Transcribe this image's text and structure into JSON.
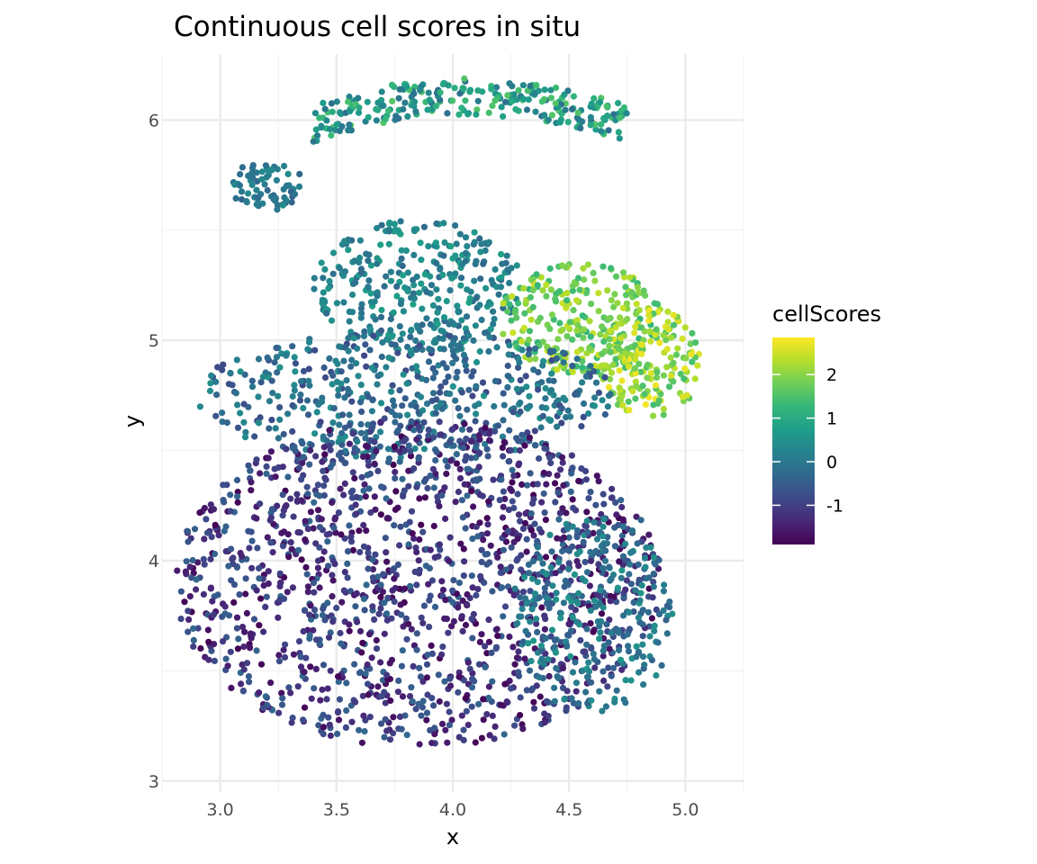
{
  "chart_data": {
    "type": "scatter",
    "title": "Continuous cell scores in situ",
    "xlabel": "x",
    "ylabel": "y",
    "xlim": [
      2.75,
      5.25
    ],
    "ylim": [
      2.95,
      6.3
    ],
    "x_ticks": [
      3.0,
      3.5,
      4.0,
      4.5,
      5.0
    ],
    "x_tick_labels": [
      "3.0",
      "3.5",
      "4.0",
      "4.5",
      "5.0"
    ],
    "y_ticks": [
      3,
      4,
      5,
      6
    ],
    "y_tick_labels": [
      "3",
      "4",
      "5",
      "6"
    ],
    "grid": true,
    "color_scale": {
      "name": "cellScores",
      "palette": "viridis",
      "min": -1.9,
      "max": 2.85,
      "ticks": [
        -1,
        0,
        1,
        2
      ],
      "tick_labels": [
        "-1",
        "0",
        "1",
        "2"
      ],
      "colors": [
        "#440154",
        "#482878",
        "#3e4989",
        "#31688e",
        "#26828e",
        "#1f9e89",
        "#35b779",
        "#6ece58",
        "#b5de2b",
        "#fde725"
      ]
    },
    "legend_position": "right",
    "regions": [
      {
        "shape": "ellipse",
        "cx": 3.2,
        "cy": 5.7,
        "rx": 0.17,
        "ry": 0.11,
        "score_range": [
          -0.4,
          0.4
        ]
      },
      {
        "shape": "band",
        "x0": 3.4,
        "x1": 4.75,
        "y0": 5.9,
        "y1": 6.15,
        "score_range": [
          -0.2,
          1.6
        ]
      },
      {
        "shape": "ellipse",
        "cx": 3.85,
        "cy": 5.25,
        "rx": 0.45,
        "ry": 0.3,
        "score_range": [
          -0.3,
          0.8
        ]
      },
      {
        "shape": "ellipse",
        "cx": 4.55,
        "cy": 5.1,
        "rx": 0.35,
        "ry": 0.25,
        "score_range": [
          1.2,
          2.5
        ]
      },
      {
        "shape": "ellipse",
        "cx": 4.85,
        "cy": 4.9,
        "rx": 0.22,
        "ry": 0.25,
        "score_range": [
          1.4,
          2.8
        ]
      },
      {
        "shape": "ellipse",
        "cx": 3.8,
        "cy": 4.75,
        "rx": 0.9,
        "ry": 0.3,
        "score_range": [
          -0.9,
          0.5
        ]
      },
      {
        "shape": "ellipse",
        "cx": 3.85,
        "cy": 3.9,
        "rx": 1.05,
        "ry": 0.75,
        "score_range": [
          -1.9,
          -0.3
        ]
      },
      {
        "shape": "ellipse",
        "cx": 4.6,
        "cy": 3.75,
        "rx": 0.35,
        "ry": 0.45,
        "score_range": [
          -0.5,
          0.6
        ]
      }
    ]
  }
}
